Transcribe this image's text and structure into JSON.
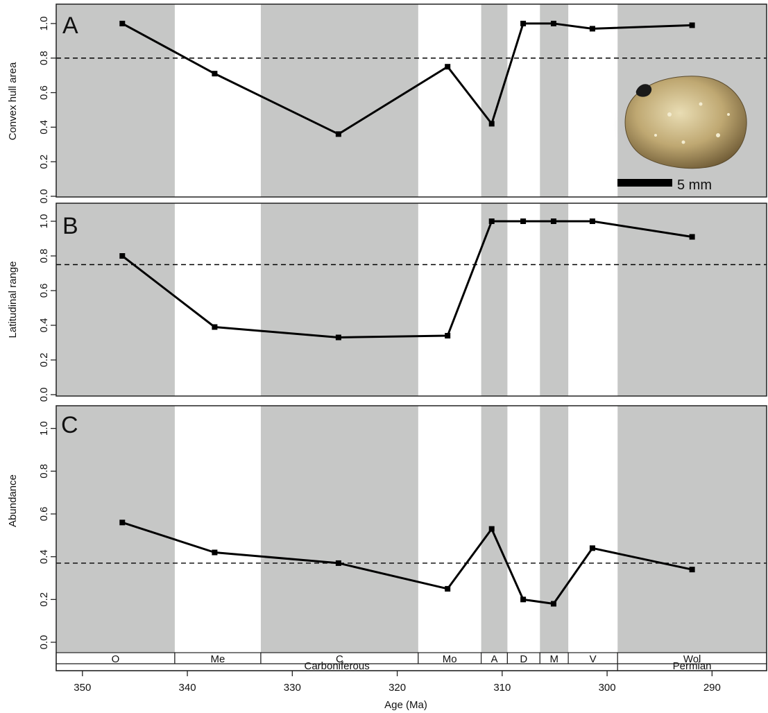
{
  "chart_data": {
    "type": "line",
    "xlabel": "Age (Ma)",
    "xlim": [
      352.5,
      284.8
    ],
    "x_ticks": [
      "350",
      "340",
      "330",
      "320",
      "310",
      "300",
      "290"
    ],
    "x_tick_values": [
      350,
      340,
      330,
      320,
      310,
      300,
      290
    ],
    "y_ticks": [
      "0.0",
      "0.2",
      "0.4",
      "0.6",
      "0.8",
      "1.0"
    ],
    "ylim": [
      0,
      1.08
    ],
    "grid": false,
    "shaded_intervals": [
      {
        "start": 352.5,
        "end": 341.2
      },
      {
        "start": 333.0,
        "end": 318.0
      },
      {
        "start": 312.0,
        "end": 309.5
      },
      {
        "start": 306.4,
        "end": 303.7
      },
      {
        "start": 299.0,
        "end": 284.8
      }
    ],
    "stages": [
      {
        "label": "O",
        "start": 352.5,
        "end": 341.2
      },
      {
        "label": "Me",
        "start": 341.2,
        "end": 333.0
      },
      {
        "label": "C",
        "start": 333.0,
        "end": 318.0
      },
      {
        "label": "Mo",
        "start": 318.0,
        "end": 312.0
      },
      {
        "label": "A",
        "start": 312.0,
        "end": 309.5
      },
      {
        "label": "D",
        "start": 309.5,
        "end": 306.4
      },
      {
        "label": "M",
        "start": 306.4,
        "end": 303.7
      },
      {
        "label": "V",
        "start": 303.7,
        "end": 299.0
      },
      {
        "label": "Wol",
        "start": 299.0,
        "end": 284.8
      }
    ],
    "periods": [
      {
        "label": "Carboniferous",
        "start": 352.5,
        "end": 299.0
      },
      {
        "label": "Permian",
        "start": 299.0,
        "end": 284.8
      }
    ],
    "x": [
      346.2,
      337.4,
      325.6,
      315.2,
      311.0,
      308.0,
      305.1,
      301.4,
      291.9
    ],
    "panels": [
      {
        "letter": "A",
        "ylabel": "Convex hull area",
        "values": [
          1.0,
          0.71,
          0.36,
          0.75,
          0.42,
          1.0,
          1.0,
          0.97,
          0.99
        ],
        "reference": 0.8,
        "inset": {
          "caption": "5 mm"
        }
      },
      {
        "letter": "B",
        "ylabel": "Latitudinal range",
        "values": [
          0.8,
          0.39,
          0.33,
          0.34,
          1.0,
          1.0,
          1.0,
          1.0,
          0.91
        ],
        "reference": 0.75
      },
      {
        "letter": "C",
        "ylabel": "Abundance",
        "values": [
          0.56,
          0.42,
          0.37,
          0.25,
          0.53,
          0.2,
          0.18,
          0.44,
          0.34
        ],
        "reference": 0.37
      }
    ]
  },
  "colors": {
    "shade": "#c6c7c6",
    "line": "#000000",
    "background": "#ffffff"
  }
}
